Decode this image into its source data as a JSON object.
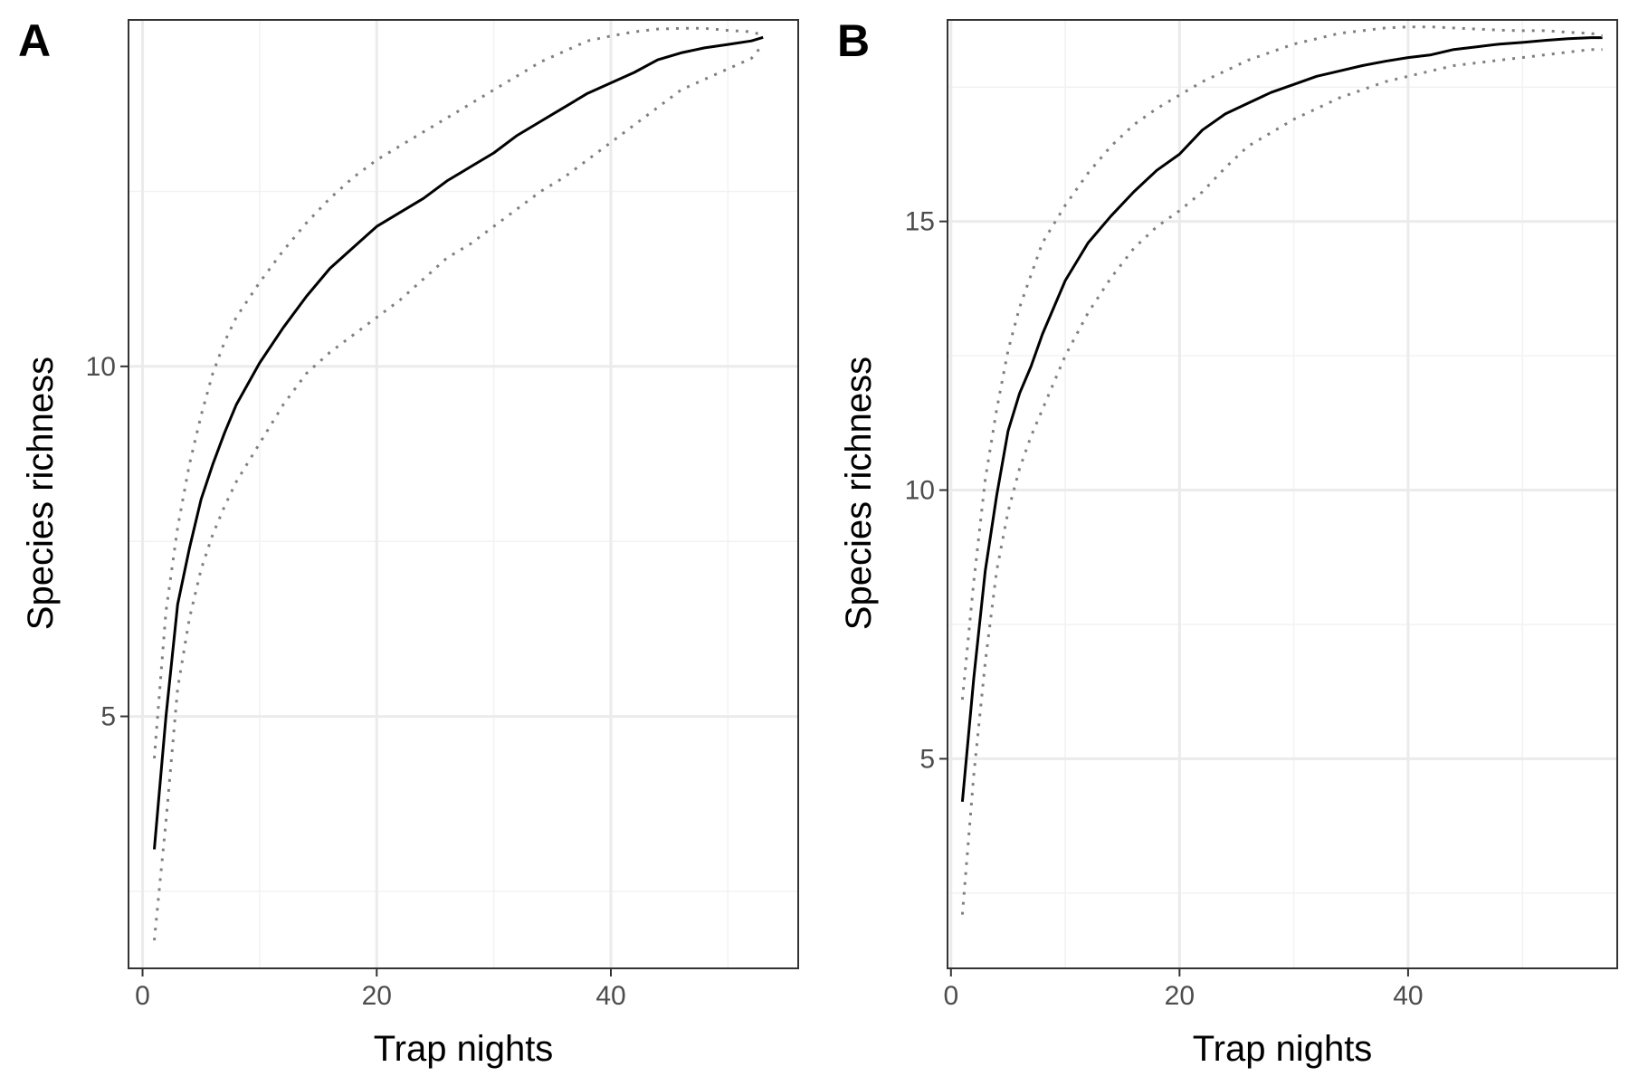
{
  "chart_data": [
    {
      "panel": "A",
      "type": "line",
      "xlabel": "Trap nights",
      "ylabel": "Species richness",
      "xlim": [
        -1.2,
        56
      ],
      "ylim": [
        1.4,
        14.95
      ],
      "x_ticks": [
        0,
        20,
        40
      ],
      "y_ticks": [
        5,
        10
      ],
      "grid": true,
      "legend": "none",
      "series": [
        {
          "line_style": "solid",
          "x": [
            1,
            2,
            3,
            4,
            5,
            6,
            7,
            8,
            10,
            12,
            14,
            16,
            18,
            20,
            22,
            24,
            26,
            28,
            30,
            32,
            34,
            36,
            38,
            40,
            42,
            44,
            46,
            48,
            50,
            52,
            53
          ],
          "y": [
            3.1,
            5.0,
            6.6,
            7.4,
            8.1,
            8.6,
            9.05,
            9.45,
            10.05,
            10.55,
            11.0,
            11.4,
            11.7,
            12.0,
            12.2,
            12.4,
            12.65,
            12.85,
            13.05,
            13.3,
            13.5,
            13.7,
            13.9,
            14.05,
            14.2,
            14.38,
            14.48,
            14.55,
            14.6,
            14.65,
            14.7
          ]
        },
        {
          "line_style": "dotted",
          "x": [
            1,
            2,
            3,
            4,
            5,
            6,
            7,
            8,
            10,
            12,
            14,
            16,
            18,
            20,
            22,
            24,
            26,
            28,
            30,
            32,
            34,
            36,
            38,
            40,
            42,
            44,
            46,
            48,
            50,
            52,
            53
          ],
          "y": [
            4.4,
            6.5,
            7.7,
            8.6,
            9.3,
            9.9,
            10.35,
            10.7,
            11.2,
            11.65,
            12.05,
            12.4,
            12.7,
            12.95,
            13.15,
            13.35,
            13.55,
            13.75,
            13.95,
            14.15,
            14.35,
            14.5,
            14.65,
            14.72,
            14.78,
            14.82,
            14.83,
            14.83,
            14.8,
            14.78,
            14.73
          ]
        },
        {
          "line_style": "dotted",
          "x": [
            1,
            2,
            3,
            4,
            5,
            6,
            7,
            8,
            10,
            12,
            14,
            16,
            18,
            20,
            22,
            24,
            26,
            28,
            30,
            32,
            34,
            36,
            38,
            40,
            42,
            44,
            46,
            48,
            50,
            52,
            53
          ],
          "y": [
            1.8,
            3.5,
            5.4,
            6.4,
            7.1,
            7.6,
            8.0,
            8.35,
            8.9,
            9.45,
            9.9,
            10.2,
            10.45,
            10.7,
            10.95,
            11.25,
            11.55,
            11.75,
            12.0,
            12.25,
            12.5,
            12.7,
            12.95,
            13.2,
            13.45,
            13.7,
            13.95,
            14.1,
            14.25,
            14.4,
            14.6
          ]
        }
      ]
    },
    {
      "panel": "B",
      "type": "line",
      "xlabel": "Trap nights",
      "ylabel": "Species richness",
      "xlim": [
        -0.3,
        58.3
      ],
      "ylim": [
        1.1,
        18.75
      ],
      "x_ticks": [
        0,
        20,
        40
      ],
      "y_ticks": [
        5,
        10,
        15
      ],
      "grid": true,
      "legend": "none",
      "series": [
        {
          "line_style": "solid",
          "x": [
            1,
            2,
            3,
            4,
            5,
            6,
            7,
            8,
            10,
            12,
            14,
            16,
            18,
            20,
            22,
            24,
            26,
            28,
            30,
            32,
            34,
            36,
            38,
            40,
            42,
            44,
            46,
            48,
            50,
            52,
            54,
            56,
            57
          ],
          "y": [
            4.2,
            6.5,
            8.5,
            9.9,
            11.1,
            11.8,
            12.3,
            12.9,
            13.9,
            14.6,
            15.1,
            15.55,
            15.95,
            16.25,
            16.7,
            17.0,
            17.2,
            17.4,
            17.55,
            17.7,
            17.8,
            17.9,
            17.98,
            18.05,
            18.1,
            18.2,
            18.25,
            18.3,
            18.33,
            18.37,
            18.4,
            18.42,
            18.42
          ]
        },
        {
          "line_style": "dotted",
          "x": [
            1,
            2,
            3,
            4,
            5,
            6,
            7,
            8,
            10,
            12,
            14,
            16,
            18,
            20,
            22,
            24,
            26,
            28,
            30,
            32,
            34,
            36,
            38,
            40,
            42,
            44,
            46,
            48,
            50,
            52,
            54,
            56,
            57
          ],
          "y": [
            6.1,
            8.3,
            10.2,
            11.5,
            12.6,
            13.4,
            14.0,
            14.6,
            15.3,
            15.9,
            16.4,
            16.8,
            17.1,
            17.35,
            17.6,
            17.8,
            18.0,
            18.15,
            18.3,
            18.4,
            18.5,
            18.55,
            18.6,
            18.62,
            18.62,
            18.6,
            18.58,
            18.56,
            18.55,
            18.55,
            18.52,
            18.5,
            18.45
          ]
        },
        {
          "line_style": "dotted",
          "x": [
            1,
            2,
            3,
            4,
            5,
            6,
            7,
            8,
            10,
            12,
            14,
            16,
            18,
            20,
            22,
            24,
            26,
            28,
            30,
            32,
            34,
            36,
            38,
            40,
            42,
            44,
            46,
            48,
            50,
            52,
            54,
            56,
            57
          ],
          "y": [
            2.1,
            4.7,
            6.8,
            8.5,
            9.6,
            10.4,
            11.0,
            11.5,
            12.5,
            13.3,
            13.95,
            14.5,
            14.9,
            15.2,
            15.55,
            16.0,
            16.4,
            16.65,
            16.9,
            17.1,
            17.3,
            17.45,
            17.6,
            17.7,
            17.8,
            17.9,
            17.95,
            18.0,
            18.05,
            18.1,
            18.15,
            18.2,
            18.2
          ]
        }
      ]
    }
  ],
  "colors": {
    "background": "#ffffff",
    "panel_border": "#333333",
    "grid_major": "#ebebeb",
    "grid_minor": "#f2f2f2",
    "solid_line": "#000000",
    "dotted_line": "#808080",
    "tick_text": "#4d4d4d"
  }
}
